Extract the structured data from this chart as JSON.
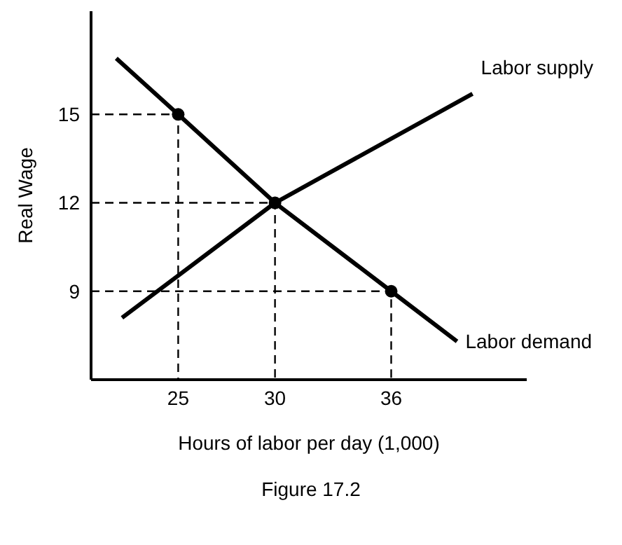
{
  "chart_data": {
    "type": "line",
    "xlabel": "Hours of labor per day (1,000)",
    "ylabel": "Real Wage",
    "annotations": [
      "Figure 17.2"
    ],
    "xlim": [
      20.5,
      43
    ],
    "ylim": [
      6,
      18.5
    ],
    "xticks": [
      25,
      30,
      36
    ],
    "yticks": [
      9,
      12,
      15
    ],
    "grid": false,
    "legend": false,
    "marker": "none",
    "line_style": "solid",
    "series": [
      {
        "name": "Labor supply",
        "color": "#000000",
        "x": [
          22.1,
          30,
          40.2
        ],
        "values": [
          8.1,
          12,
          15.7
        ]
      },
      {
        "name": "Labor demand",
        "color": "#000000",
        "x": [
          21.8,
          25,
          30,
          36,
          39.4
        ],
        "values": [
          16.9,
          15,
          12,
          9,
          7.3
        ]
      },
      {
        "type": "line",
        "line_style": "dashed",
        "color": "#000000",
        "x": [
          20.5,
          25,
          25
        ],
        "values": [
          15,
          15,
          6
        ]
      },
      {
        "type": "line",
        "line_style": "dashed",
        "color": "#000000",
        "x": [
          20.5,
          30,
          30
        ],
        "values": [
          12,
          12,
          6
        ]
      },
      {
        "type": "line",
        "line_style": "dashed",
        "color": "#000000",
        "x": [
          20.5,
          36,
          36
        ],
        "values": [
          9,
          9,
          6
        ]
      },
      {
        "type": "scatter",
        "marker": "circle",
        "color": "#000000",
        "x": [
          25,
          30,
          36
        ],
        "values": [
          15,
          12,
          9
        ]
      }
    ]
  }
}
